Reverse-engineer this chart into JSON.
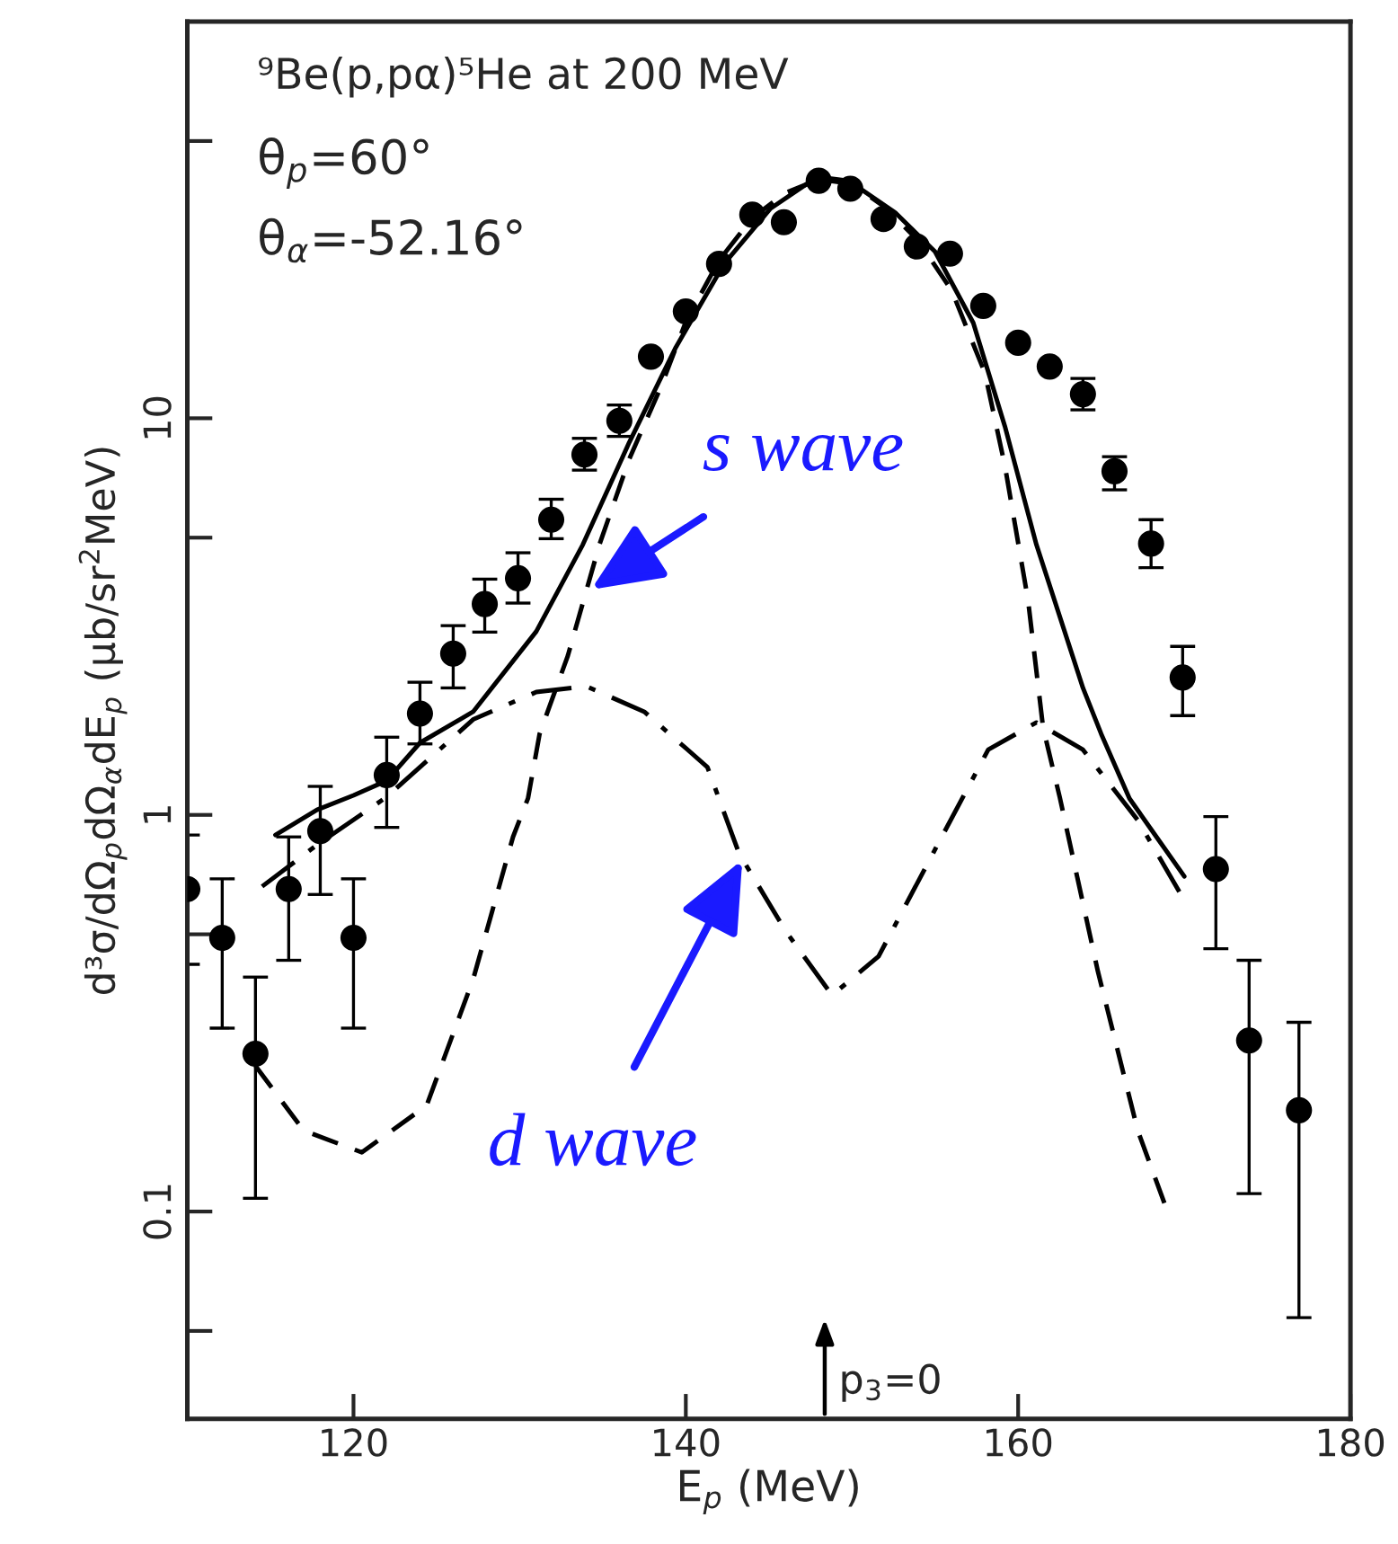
{
  "chart_data": {
    "type": "scatter",
    "xlabel": "E$_{p}$ (MeV)",
    "ylabel": "d³σ/dΩ$_{p}$dΩ$_{α}$dE$_{p}$ (μb/sr$^{2}$MeV)",
    "log": "y",
    "xlim": [
      110,
      180
    ],
    "xticks": [
      120,
      140,
      160,
      180
    ],
    "ylim": [
      0.03,
      100
    ],
    "yticks": [
      {
        "value": 0.05,
        "label": null
      },
      {
        "value": 0.1,
        "label": "0.1"
      },
      {
        "value": 0.5,
        "label": null
      },
      1,
      {
        "value": 5,
        "label": null
      },
      10,
      {
        "value": 50,
        "label": null
      }
    ],
    "grid": false,
    "legend": false,
    "series": [
      {
        "type": "scatter",
        "color": "#000000",
        "marker": "circle",
        "x": [
          110.0,
          112.1,
          114.1,
          116.1,
          118.0,
          120.0,
          122.0,
          124.0,
          126.0,
          127.9,
          129.9,
          131.9,
          133.9,
          136.0,
          137.9,
          140.0,
          142.0,
          144.0,
          145.9,
          148.0,
          149.9,
          151.9,
          153.9,
          155.9,
          157.9,
          160.0,
          161.9,
          163.9,
          165.8,
          168.0,
          169.9,
          171.9,
          173.9,
          176.9
        ],
        "values": [
          0.65,
          0.49,
          0.25,
          0.65,
          0.91,
          0.49,
          1.26,
          1.8,
          2.55,
          3.4,
          3.95,
          5.55,
          8.1,
          9.85,
          14.3,
          18.6,
          24.5,
          32.6,
          31.2,
          39.7,
          37.9,
          31.8,
          27.1,
          26.0,
          19.2,
          15.5,
          13.5,
          11.5,
          7.35,
          4.83,
          2.22,
          0.73,
          0.27,
          0.18
        ],
        "errors": [
          [
            0.42,
            0.89
          ],
          [
            0.29,
            0.69
          ],
          [
            0.108,
            0.39
          ],
          [
            0.43,
            0.88
          ],
          [
            0.63,
            1.18
          ],
          [
            0.29,
            0.69
          ],
          [
            0.93,
            1.57
          ],
          [
            1.51,
            2.16
          ],
          [
            2.09,
            3.0
          ],
          [
            2.89,
            3.93
          ],
          [
            3.42,
            4.58
          ],
          [
            4.97,
            6.25
          ],
          [
            7.4,
            8.9
          ],
          [
            9.0,
            10.8
          ],
          null,
          null,
          null,
          null,
          null,
          null,
          null,
          null,
          null,
          null,
          null,
          null,
          null,
          [
            10.5,
            12.6
          ],
          [
            6.6,
            8.0
          ],
          [
            4.2,
            5.55
          ],
          [
            1.78,
            2.66
          ],
          [
            0.46,
            0.99
          ],
          [
            0.111,
            0.43
          ],
          [
            0.054,
            0.3
          ]
        ]
      },
      {
        "type": "line",
        "color": "#000000",
        "line_style": "solid",
        "x": [
          115.3,
          117.8,
          120.0,
          122.0,
          124.0,
          127.2,
          131.0,
          133.8,
          136.6,
          139.4,
          142.3,
          145.1,
          147.9,
          149.8,
          152.6,
          155.0,
          157.3,
          159.2,
          161.1,
          163.9,
          165.0,
          166.7,
          168.0,
          170.0
        ],
        "values": [
          0.89,
          1.03,
          1.12,
          1.22,
          1.52,
          1.82,
          2.9,
          4.8,
          8.7,
          15.1,
          24.5,
          33.8,
          40.6,
          39.7,
          33.0,
          26.3,
          17.4,
          9.55,
          4.8,
          2.09,
          1.6,
          1.1,
          0.92,
          0.7
        ]
      },
      {
        "type": "line",
        "color": "#000000",
        "line_style": "dashed",
        "x": [
          114.1,
          117.0,
          120.5,
          124.4,
          127.2,
          129.6,
          130.5,
          131.2,
          132.9,
          134.8,
          136.6,
          138.5,
          140.0,
          142.0,
          144.0,
          146.0,
          148.0,
          150.0,
          152.0,
          154.0,
          156.0,
          158.0,
          159.2,
          160.6,
          161.5,
          162.5,
          164.8,
          167.2,
          168.8
        ],
        "values": [
          0.233,
          0.16,
          0.141,
          0.185,
          0.385,
          0.88,
          1.1,
          1.6,
          2.52,
          4.8,
          7.9,
          12.0,
          17.5,
          25.0,
          32.0,
          37.0,
          40.0,
          39.0,
          34.0,
          28.0,
          21.0,
          13.0,
          7.6,
          3.47,
          1.66,
          1.11,
          0.403,
          0.16,
          0.105
        ]
      },
      {
        "type": "line",
        "color": "#000000",
        "line_style": "dashdot",
        "x": [
          114.5,
          117.8,
          122.0,
          127.2,
          131.0,
          134.0,
          137.5,
          141.3,
          143.2,
          146.0,
          148.8,
          151.6,
          155.4,
          158.2,
          161.1,
          163.9,
          167.2,
          169.7
        ],
        "values": [
          0.66,
          0.84,
          1.11,
          1.74,
          2.04,
          2.11,
          1.82,
          1.32,
          0.8,
          0.51,
          0.351,
          0.44,
          0.88,
          1.46,
          1.71,
          1.46,
          0.97,
          0.64
        ]
      }
    ],
    "annotations": [
      "⁹Be(p,pα)⁵He at 200 MeV",
      "θ$_{p}$=60°",
      "θ$_{α}$=-52.16°",
      {
        "text": "s wave",
        "x": 134.3,
        "y": 3.7
      },
      {
        "text": "d wave",
        "x": 143.4,
        "y": 0.77
      },
      "p$_{3}$=0"
    ]
  }
}
